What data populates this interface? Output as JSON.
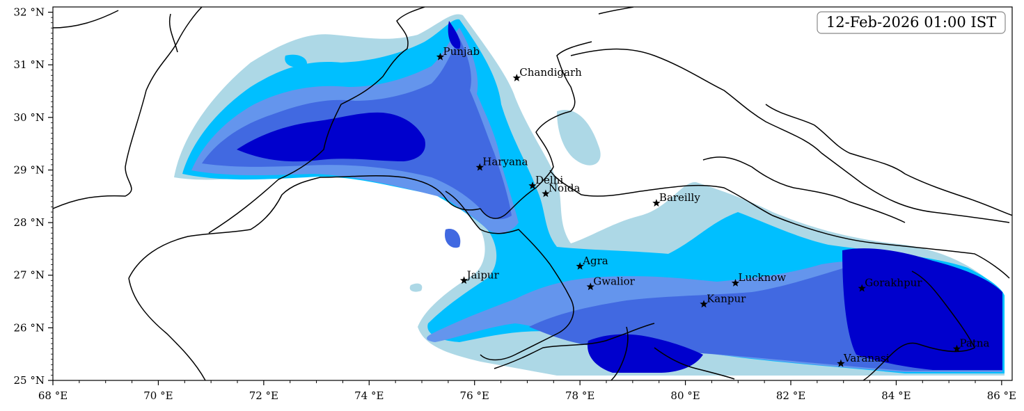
{
  "timestamp": "12-Feb-2026 01:00 IST",
  "axes": {
    "x_ticks": [
      "68 °E",
      "70 °E",
      "72 °E",
      "74 °E",
      "76 °E",
      "78 °E",
      "80 °E",
      "82 °E",
      "84 °E",
      "86 °E"
    ],
    "y_ticks": [
      "25 °N",
      "26 °N",
      "27 °N",
      "28 °N",
      "29 °N",
      "30 °N",
      "31 °N",
      "32 °N"
    ],
    "lon_range": [
      68,
      86.2
    ],
    "lat_range": [
      25,
      32.1
    ]
  },
  "colors": {
    "level1": "#add8e6",
    "level2": "#00bfff",
    "level3": "#6495ed",
    "level4": "#4169e1",
    "level5": "#0000cd",
    "border": "#000000"
  },
  "cities": [
    {
      "name": "Punjab",
      "lon": 75.35,
      "lat": 31.15
    },
    {
      "name": "Chandigarh",
      "lon": 76.8,
      "lat": 30.75
    },
    {
      "name": "Haryana",
      "lon": 76.1,
      "lat": 29.05
    },
    {
      "name": "Delhi",
      "lon": 77.1,
      "lat": 28.7
    },
    {
      "name": "Noida",
      "lon": 77.35,
      "lat": 28.55
    },
    {
      "name": "Bareilly",
      "lon": 79.45,
      "lat": 28.37
    },
    {
      "name": "Agra",
      "lon": 78.0,
      "lat": 27.17
    },
    {
      "name": "Jaipur",
      "lon": 75.8,
      "lat": 26.9
    },
    {
      "name": "Gwalior",
      "lon": 78.2,
      "lat": 26.78
    },
    {
      "name": "Lucknow",
      "lon": 80.95,
      "lat": 26.85
    },
    {
      "name": "Gorakhpur",
      "lon": 83.35,
      "lat": 26.75
    },
    {
      "name": "Kanpur",
      "lon": 80.35,
      "lat": 26.45
    },
    {
      "name": "Varanasi",
      "lon": 82.95,
      "lat": 25.32
    },
    {
      "name": "Patna",
      "lon": 85.15,
      "lat": 25.6
    }
  ]
}
